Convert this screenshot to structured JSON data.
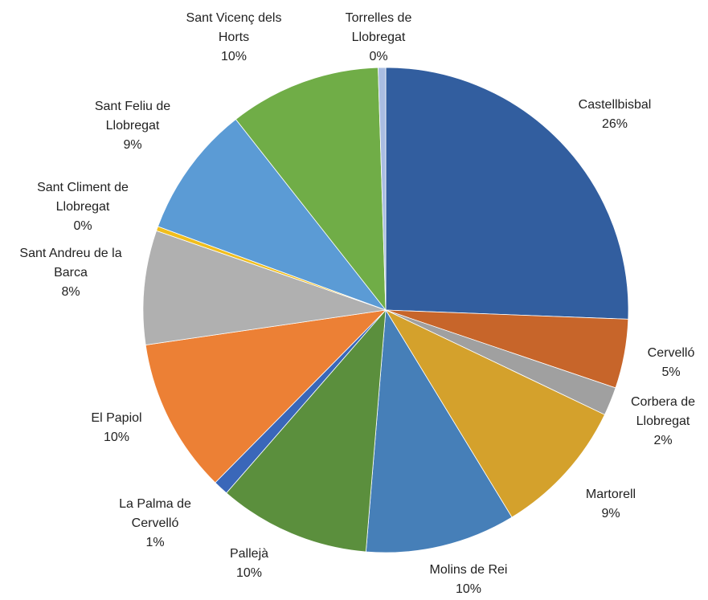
{
  "chart_data": {
    "type": "pie",
    "categories": [
      "Castellbisbal",
      "Cervelló",
      "Corbera de Llobregat",
      "Martorell",
      "Molins de Rei",
      "Pallejà",
      "La Palma de Cervelló",
      "El Papiol",
      "Sant Andreu de la Barca",
      "Sant Climent de Llobregat",
      "Sant Feliu de Llobregat",
      "Sant Vicenç dels Horts",
      "Torrelles de Llobregat"
    ],
    "values": [
      25.6,
      4.6,
      1.9,
      9.2,
      10.0,
      10.1,
      1.0,
      10.3,
      7.6,
      0.3,
      8.8,
      10.1,
      0.5
    ],
    "value_labels": [
      "26%",
      "5%",
      "2%",
      "9%",
      "10%",
      "10%",
      "1%",
      "10%",
      "8%",
      "0%",
      "9%",
      "10%",
      "0%"
    ],
    "colors": [
      "#325e9f",
      "#c7652a",
      "#a0a0a0",
      "#d4a12c",
      "#467fb8",
      "#5b8f3d",
      "#3a67b9",
      "#ec8035",
      "#b0b0b0",
      "#f0be1e",
      "#5b9bd5",
      "#70ad47",
      "#a9bde2"
    ]
  }
}
